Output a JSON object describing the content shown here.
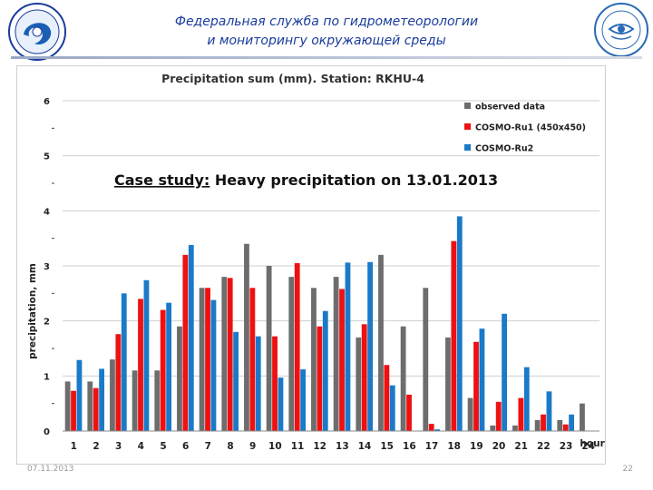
{
  "header": {
    "title_line1": "Федеральная служба по гидрометеорологии",
    "title_line2": "и мониторингу окружающей среды"
  },
  "colors": {
    "observed": "#6d6d6d",
    "cosmo1": "#ee1111",
    "cosmo2": "#1a7ac9",
    "header_text": "#1a3c9c"
  },
  "footer": {
    "date": "07.11.2013",
    "page": "22"
  },
  "chart_data": {
    "type": "bar",
    "title": "Precipitation sum (mm). Station: RKHU-4",
    "annotation_prefix": "Case study:",
    "annotation_rest": " Heavy precipitation on 13.01.2013",
    "xlabel": "hours",
    "ylabel": "precipitation, mm",
    "ylim": [
      0,
      6
    ],
    "yticks": [
      "0",
      "1",
      "2",
      "3",
      "4",
      "5",
      "6"
    ],
    "grid": true,
    "legend_position": "top-right",
    "categories": [
      "1",
      "2",
      "3",
      "4",
      "5",
      "6",
      "7",
      "8",
      "9",
      "10",
      "11",
      "12",
      "13",
      "14",
      "15",
      "16",
      "17",
      "18",
      "19",
      "20",
      "21",
      "22",
      "23",
      "24"
    ],
    "series": [
      {
        "name": "observed data",
        "values": [
          0.9,
          0.9,
          1.3,
          1.1,
          1.1,
          1.9,
          2.6,
          2.8,
          3.4,
          3.0,
          2.8,
          2.6,
          2.8,
          1.7,
          3.2,
          1.9,
          2.6,
          1.7,
          0.6,
          0.1,
          0.1,
          0.2,
          0.2,
          0.5
        ]
      },
      {
        "name": "COSMO-Ru1  (450x450)",
        "values": [
          0.73,
          0.78,
          1.76,
          2.4,
          2.2,
          3.2,
          2.6,
          2.78,
          2.6,
          1.72,
          3.05,
          1.9,
          2.58,
          1.94,
          1.2,
          0.66,
          0.13,
          3.45,
          1.62,
          0.53,
          0.6,
          0.3,
          0.12,
          0.0
        ]
      },
      {
        "name": "COSMO-Ru2",
        "values": [
          1.29,
          1.13,
          2.5,
          2.74,
          2.33,
          3.38,
          2.38,
          1.8,
          1.72,
          0.97,
          1.12,
          2.18,
          3.06,
          3.07,
          0.83,
          0.0,
          0.03,
          3.9,
          1.86,
          2.13,
          1.16,
          0.72,
          0.3,
          0.0
        ]
      }
    ]
  }
}
